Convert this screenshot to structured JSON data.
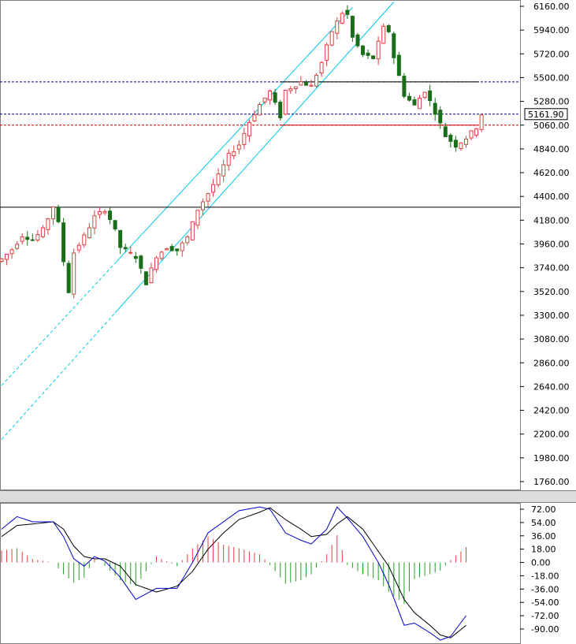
{
  "chart_data": [
    {
      "type": "candlestick",
      "title": "",
      "xlabel": "",
      "ylabel": "",
      "ylim": [
        1700,
        6220
      ],
      "grid": false,
      "y_ticks": [
        "6160.00",
        "5940.00",
        "5720.00",
        "5500.00",
        "5280.00",
        "5060.00",
        "4840.00",
        "4620.00",
        "4400.00",
        "4180.00",
        "3960.00",
        "3740.00",
        "3520.00",
        "3300.00",
        "3080.00",
        "2860.00",
        "2640.00",
        "2420.00",
        "2200.00",
        "1980.00",
        "1760.00"
      ],
      "y_tick_values": [
        6160,
        5940,
        5720,
        5500,
        5280,
        5060,
        4840,
        4620,
        4400,
        4180,
        3960,
        3740,
        3520,
        3300,
        3080,
        2860,
        2640,
        2420,
        2200,
        1980,
        1760
      ],
      "last_price_label": "5161.90",
      "last_price": 5161.9,
      "bar_count": 100,
      "up_color": "#e04040",
      "down_color": "#1a6e1a",
      "horizontal_levels": [
        {
          "value": 5460,
          "style": "dashed",
          "color": "#000080",
          "span": "full"
        },
        {
          "value": 5460,
          "style": "solid",
          "color": "#000000",
          "span": "partial",
          "from_bar": 54
        },
        {
          "value": 5161.9,
          "style": "dashed",
          "color": "#000080",
          "span": "full"
        },
        {
          "value": 5060,
          "style": "dashed",
          "color": "#cc0000",
          "span": "full"
        },
        {
          "value": 5060,
          "style": "solid",
          "color": "#cc0000",
          "span": "partial",
          "from_bar": 54
        },
        {
          "value": 4300,
          "style": "solid",
          "color": "#000000",
          "span": "full"
        }
      ],
      "channel": {
        "color": "#00c8e8",
        "upper": {
          "bar1": 0,
          "val1": 2650,
          "bar2": 68,
          "val2": 6150
        },
        "lower": {
          "bar1": 0,
          "val1": 2150,
          "bar2": 76,
          "val2": 6200
        },
        "solid_from_bar": 22
      },
      "ohlc_anchors": [
        [
          0,
          3820
        ],
        [
          2,
          3910
        ],
        [
          4,
          4040
        ],
        [
          6,
          4000
        ],
        [
          8,
          4090
        ],
        [
          10,
          4310
        ],
        [
          11,
          4150
        ],
        [
          12,
          3800
        ],
        [
          13,
          3520
        ],
        [
          14,
          3880
        ],
        [
          16,
          4030
        ],
        [
          18,
          4210
        ],
        [
          20,
          4280
        ],
        [
          21,
          4190
        ],
        [
          22,
          4080
        ],
        [
          23,
          3930
        ],
        [
          26,
          3840
        ],
        [
          28,
          3600
        ],
        [
          30,
          3850
        ],
        [
          32,
          3930
        ],
        [
          34,
          3900
        ],
        [
          36,
          4020
        ],
        [
          38,
          4280
        ],
        [
          40,
          4430
        ],
        [
          42,
          4590
        ],
        [
          44,
          4780
        ],
        [
          46,
          4880
        ],
        [
          48,
          5090
        ],
        [
          50,
          5250
        ],
        [
          52,
          5370
        ],
        [
          54,
          5140
        ],
        [
          55,
          5380
        ],
        [
          58,
          5460
        ],
        [
          60,
          5420
        ],
        [
          62,
          5640
        ],
        [
          64,
          5930
        ],
        [
          66,
          6100
        ],
        [
          67,
          6080
        ],
        [
          68,
          5870
        ],
        [
          70,
          5710
        ],
        [
          72,
          5680
        ],
        [
          74,
          5960
        ],
        [
          75,
          5930
        ],
        [
          76,
          5690
        ],
        [
          78,
          5340
        ],
        [
          80,
          5240
        ],
        [
          82,
          5380
        ],
        [
          84,
          5180
        ],
        [
          86,
          4960
        ],
        [
          88,
          4870
        ],
        [
          90,
          4940
        ],
        [
          92,
          5040
        ],
        [
          93,
          5161.9
        ]
      ]
    },
    {
      "type": "macd",
      "title": "",
      "ylim": [
        -104,
        84
      ],
      "y_ticks": [
        "72.00",
        "54.00",
        "36.00",
        "18.00",
        "0.00",
        "-18.00",
        "-36.00",
        "-54.00",
        "-72.00",
        "-90.00"
      ],
      "y_tick_values": [
        72,
        54,
        36,
        18,
        0,
        -18,
        -36,
        -54,
        -72,
        -90
      ],
      "positive_hist_color": "#e04040",
      "negative_hist_color": "#22a022",
      "macd_color": "#0000cc",
      "signal_color": "#000000",
      "macd_anchors": [
        [
          0,
          45
        ],
        [
          3,
          62
        ],
        [
          6,
          55
        ],
        [
          10,
          55
        ],
        [
          12,
          35
        ],
        [
          14,
          5
        ],
        [
          16,
          -5
        ],
        [
          18,
          8
        ],
        [
          20,
          2
        ],
        [
          23,
          -20
        ],
        [
          26,
          -50
        ],
        [
          30,
          -35
        ],
        [
          34,
          -35
        ],
        [
          37,
          0
        ],
        [
          40,
          40
        ],
        [
          43,
          55
        ],
        [
          46,
          70
        ],
        [
          50,
          75
        ],
        [
          52,
          72
        ],
        [
          55,
          40
        ],
        [
          58,
          30
        ],
        [
          60,
          25
        ],
        [
          63,
          45
        ],
        [
          65,
          75
        ],
        [
          67,
          60
        ],
        [
          70,
          35
        ],
        [
          73,
          0
        ],
        [
          75,
          -30
        ],
        [
          78,
          -85
        ],
        [
          80,
          -82
        ],
        [
          83,
          -95
        ],
        [
          85,
          -105
        ],
        [
          87,
          -100
        ],
        [
          90,
          -72
        ]
      ],
      "signal_anchors": [
        [
          0,
          35
        ],
        [
          3,
          50
        ],
        [
          6,
          52
        ],
        [
          10,
          55
        ],
        [
          12,
          45
        ],
        [
          14,
          22
        ],
        [
          16,
          8
        ],
        [
          18,
          5
        ],
        [
          20,
          5
        ],
        [
          23,
          -5
        ],
        [
          26,
          -30
        ],
        [
          30,
          -40
        ],
        [
          34,
          -32
        ],
        [
          37,
          -12
        ],
        [
          40,
          18
        ],
        [
          43,
          40
        ],
        [
          46,
          58
        ],
        [
          50,
          68
        ],
        [
          52,
          74
        ],
        [
          55,
          58
        ],
        [
          58,
          45
        ],
        [
          60,
          35
        ],
        [
          63,
          38
        ],
        [
          65,
          52
        ],
        [
          67,
          62
        ],
        [
          70,
          45
        ],
        [
          73,
          15
        ],
        [
          75,
          -5
        ],
        [
          78,
          -50
        ],
        [
          80,
          -68
        ],
        [
          83,
          -85
        ],
        [
          85,
          -98
        ],
        [
          87,
          -102
        ],
        [
          90,
          -85
        ]
      ]
    }
  ]
}
